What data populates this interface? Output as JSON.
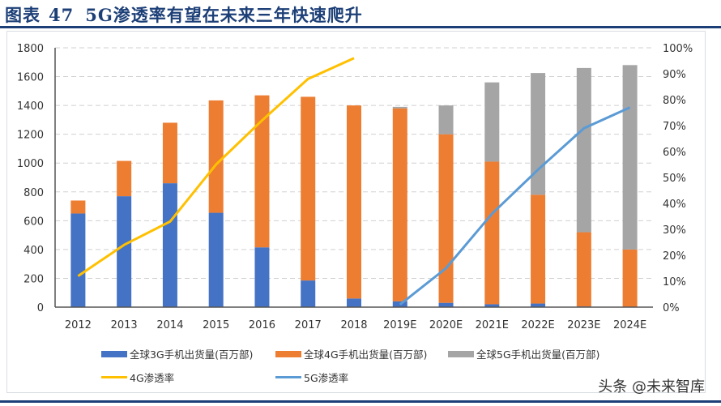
{
  "title": {
    "label": "图表",
    "number": "47",
    "text": "5G渗透率有望在未来三年快速爬升"
  },
  "watermark": "头条 @未来智库",
  "colors": {
    "3g": "#4472c4",
    "4g": "#ed7d31",
    "5g": "#a5a5a5",
    "4g_line": "#ffc000",
    "5g_line": "#5b9bd5",
    "title": "#1c3f77"
  },
  "chart_data": {
    "type": "bar",
    "stacked": true,
    "categories": [
      "2012",
      "2013",
      "2014",
      "2015",
      "2016",
      "2017",
      "2018",
      "2019E",
      "2020E",
      "2021E",
      "2022E",
      "2023E",
      "2024E"
    ],
    "series": [
      {
        "name": "全球3G手机出货量(百万部)",
        "type": "bar",
        "axis": "left",
        "values": [
          650,
          770,
          860,
          655,
          415,
          185,
          60,
          40,
          30,
          20,
          25,
          5,
          0
        ]
      },
      {
        "name": "全球4G手机出货量(百万部)",
        "type": "bar",
        "axis": "left",
        "values": [
          90,
          245,
          420,
          780,
          1055,
          1275,
          1340,
          1340,
          1170,
          990,
          755,
          515,
          400
        ]
      },
      {
        "name": "全球5G手机出货量(百万部)",
        "type": "bar",
        "axis": "left",
        "values": [
          0,
          0,
          0,
          0,
          0,
          0,
          0,
          10,
          200,
          550,
          845,
          1140,
          1280
        ]
      },
      {
        "name": "4G渗透率",
        "type": "line",
        "axis": "right",
        "values": [
          12,
          24,
          33,
          55,
          72,
          88,
          96,
          null,
          null,
          null,
          null,
          null,
          null
        ]
      },
      {
        "name": "5G渗透率",
        "type": "line",
        "axis": "right",
        "values": [
          null,
          null,
          null,
          null,
          null,
          null,
          null,
          1,
          15,
          36,
          53,
          69,
          77
        ]
      }
    ],
    "y_left": {
      "min": 0,
      "max": 1800,
      "ticks": [
        "0",
        "200",
        "400",
        "600",
        "800",
        "1000",
        "1200",
        "1400",
        "1600",
        "1800"
      ]
    },
    "y_right": {
      "min": 0,
      "max": 100,
      "ticks": [
        "0%",
        "10%",
        "20%",
        "30%",
        "40%",
        "50%",
        "60%",
        "70%",
        "80%",
        "90%",
        "100%"
      ]
    },
    "grid": true,
    "legend_position": "bottom"
  }
}
